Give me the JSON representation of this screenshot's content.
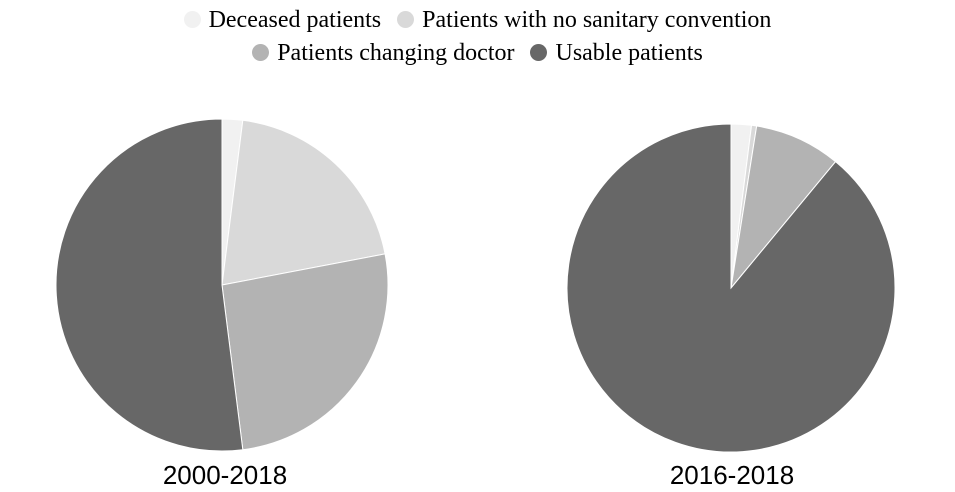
{
  "chart_data": {
    "type": "pie",
    "legend": {
      "placement": "top-center",
      "entries": [
        {
          "label": "Deceased patients",
          "color": "#f1f1f1"
        },
        {
          "label": "Patients with no sanitary convention",
          "color": "#d9d9d9"
        },
        {
          "label": "Patients changing doctor",
          "color": "#b3b3b3"
        },
        {
          "label": "Usable patients",
          "color": "#676767"
        }
      ]
    },
    "pies": [
      {
        "caption": "2000-2018",
        "slices": [
          {
            "label": "Deceased patients",
            "value": 2.0
          },
          {
            "label": "Patients with no sanitary convention",
            "value": 20.0
          },
          {
            "label": "Patients changing doctor",
            "value": 26.0
          },
          {
            "label": "Usable patients",
            "value": 52.0
          }
        ]
      },
      {
        "caption": "2016-2018",
        "slices": [
          {
            "label": "Deceased patients",
            "value": 2.0
          },
          {
            "label": "Patients with no sanitary convention",
            "value": 0.5
          },
          {
            "label": "Patients changing doctor",
            "value": 8.5
          },
          {
            "label": "Usable patients",
            "value": 89.0
          }
        ]
      }
    ]
  }
}
